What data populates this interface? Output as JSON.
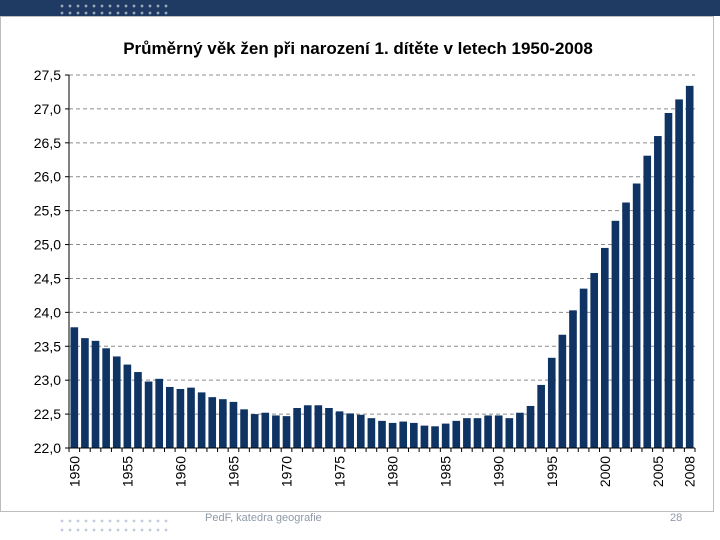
{
  "footer": {
    "text": "PedF, katedra geografie",
    "page_number": "28"
  },
  "colors": {
    "bar": "#0f3464",
    "header_band": "#1f3b64",
    "grid": "#8c8c8c"
  },
  "chart_data": {
    "type": "bar",
    "title": "Průměrný věk žen při narození 1. dítěte v letech 1950-2008",
    "xlabel": "",
    "ylabel": "",
    "ylim": [
      22.0,
      27.5
    ],
    "yticks": [
      "27,5",
      "27,0",
      "26,5",
      "26,0",
      "25,5",
      "25,0",
      "24,5",
      "24,0",
      "23,5",
      "23,0",
      "22,5",
      "22,0"
    ],
    "ytick_values": [
      27.5,
      27.0,
      26.5,
      26.0,
      25.5,
      25.0,
      24.5,
      24.0,
      23.5,
      23.0,
      22.5,
      22.0
    ],
    "xtick_labels": [
      "1950",
      "1955",
      "1960",
      "1965",
      "1970",
      "1975",
      "1980",
      "1985",
      "1990",
      "1995",
      "2000",
      "2005",
      "2008"
    ],
    "grid": true,
    "categories": [
      1950,
      1951,
      1952,
      1953,
      1954,
      1955,
      1956,
      1957,
      1958,
      1959,
      1960,
      1961,
      1962,
      1963,
      1964,
      1965,
      1966,
      1967,
      1968,
      1969,
      1970,
      1971,
      1972,
      1973,
      1974,
      1975,
      1976,
      1977,
      1978,
      1979,
      1980,
      1981,
      1982,
      1983,
      1984,
      1985,
      1986,
      1987,
      1988,
      1989,
      1990,
      1991,
      1992,
      1993,
      1994,
      1995,
      1996,
      1997,
      1998,
      1999,
      2000,
      2001,
      2002,
      2003,
      2004,
      2005,
      2006,
      2007,
      2008
    ],
    "values": [
      23.78,
      23.62,
      23.58,
      23.47,
      23.35,
      23.23,
      23.12,
      22.98,
      23.02,
      22.9,
      22.87,
      22.89,
      22.82,
      22.75,
      22.72,
      22.68,
      22.57,
      22.5,
      22.52,
      22.48,
      22.47,
      22.59,
      22.63,
      22.63,
      22.59,
      22.54,
      22.51,
      22.49,
      22.44,
      22.4,
      22.37,
      22.39,
      22.37,
      22.33,
      22.32,
      22.36,
      22.4,
      22.44,
      22.44,
      22.48,
      22.48,
      22.44,
      22.52,
      22.62,
      22.93,
      23.33,
      23.67,
      24.03,
      24.35,
      24.58,
      24.95,
      25.35,
      25.62,
      25.9,
      26.31,
      26.6,
      26.94,
      27.14,
      27.34
    ]
  }
}
